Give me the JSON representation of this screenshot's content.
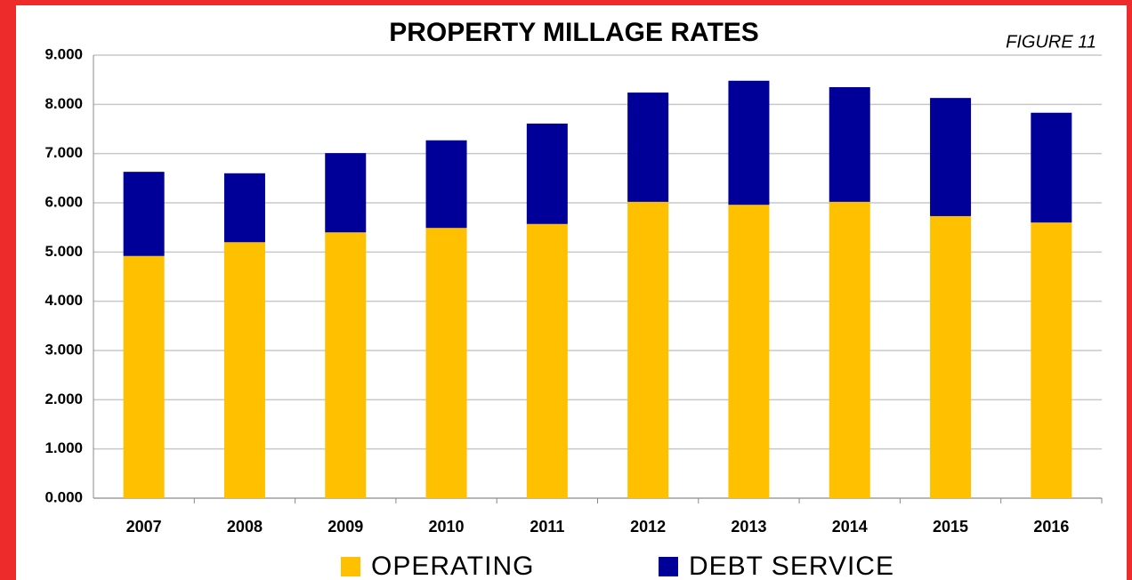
{
  "chart_data": {
    "type": "bar",
    "stacked": true,
    "title": "PROPERTY MILLAGE RATES",
    "annotation": "FIGURE 11",
    "categories": [
      "2007",
      "2008",
      "2009",
      "2010",
      "2011",
      "2012",
      "2013",
      "2014",
      "2015",
      "2016"
    ],
    "series": [
      {
        "name": "OPERATING",
        "color": "#ffc000",
        "values": [
          4.92,
          5.2,
          5.4,
          5.49,
          5.57,
          6.02,
          5.96,
          6.02,
          5.73,
          5.6
        ]
      },
      {
        "name": "DEBT SERVICE",
        "color": "#000099",
        "values": [
          1.71,
          1.4,
          1.61,
          1.78,
          2.04,
          2.22,
          2.52,
          2.33,
          2.4,
          2.23
        ]
      }
    ],
    "ylim": [
      0,
      9
    ],
    "yticks": [
      {
        "value": 0,
        "label": "0.000"
      },
      {
        "value": 1,
        "label": "1.000"
      },
      {
        "value": 2,
        "label": "2.000"
      },
      {
        "value": 3,
        "label": "3.000"
      },
      {
        "value": 4,
        "label": "4.000"
      },
      {
        "value": 5,
        "label": "5.000"
      },
      {
        "value": 6,
        "label": "6.000"
      },
      {
        "value": 7,
        "label": "7.000"
      },
      {
        "value": 8,
        "label": "8.000"
      },
      {
        "value": 9,
        "label": "9.000"
      }
    ],
    "grid": true,
    "legend": "bottom"
  }
}
